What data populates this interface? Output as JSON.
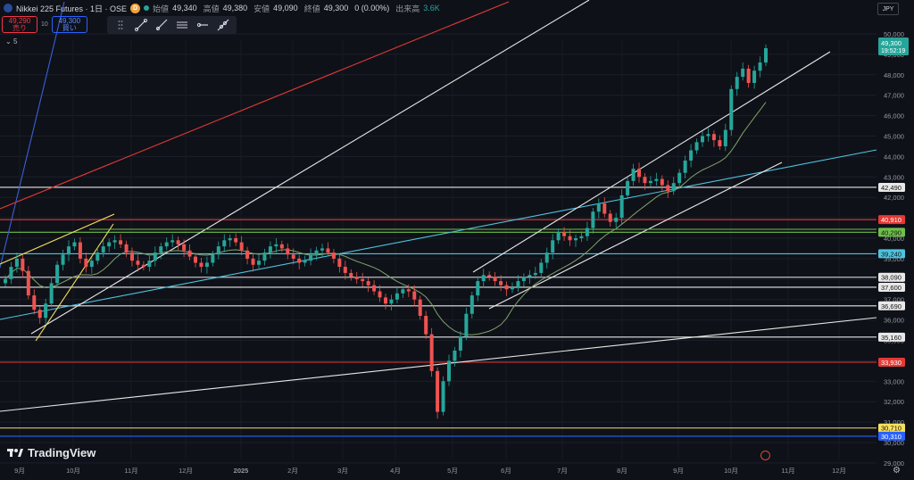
{
  "header": {
    "symbol_title": "Nikkei 225 Futures · 1日 · OSE",
    "badge": "D",
    "ohlc": [
      {
        "label": "始値",
        "value": "49,340"
      },
      {
        "label": "高値",
        "value": "49,380"
      },
      {
        "label": "安値",
        "value": "49,090"
      },
      {
        "label": "終値",
        "value": "49,300"
      }
    ],
    "change": "0 (0.00%)",
    "volume_label": "出来高",
    "volume": "3.6K",
    "currency": "JPY"
  },
  "trade": {
    "sell_price": "49,290",
    "sell_label": "売り",
    "qty": "10",
    "buy_price": "49,300",
    "buy_label": "買い"
  },
  "indicator_count": "5",
  "brand": "TradingView",
  "icons": {
    "drag": "drag-handle-icon",
    "tools": [
      "trend-line-icon",
      "ray-icon",
      "parallel-channel-icon",
      "horizontal-ray-icon",
      "extended-line-icon"
    ],
    "settings": "gear-icon"
  },
  "colors": {
    "up": "#26a69a",
    "down": "#ef5350",
    "white_line": "#e8e8e8",
    "red_line": "#e53935",
    "blue_line": "#4dc3e0",
    "green_line": "#6fbf4a",
    "yellow_line": "#f6e05e",
    "dark_blue_line": "#2962ff"
  },
  "chart_data": {
    "type": "candlestick",
    "y_ticks": [
      29000,
      30000,
      31000,
      32000,
      33000,
      34000,
      35000,
      36000,
      37000,
      38000,
      39000,
      40000,
      41000,
      42000,
      43000,
      44000,
      45000,
      46000,
      47000,
      48000,
      49000,
      50000
    ],
    "x_labels": [
      "9月",
      "10月",
      "11月",
      "12月",
      "2025",
      "2月",
      "3月",
      "4月",
      "5月",
      "6月",
      "7月",
      "8月",
      "9月",
      "10月",
      "11月",
      "12月"
    ],
    "last_price": {
      "value": "49,300",
      "countdown": "19:52:19"
    },
    "horizontal_levels": [
      {
        "value": 42490,
        "label": "42,490",
        "color": "#e8e8e8"
      },
      {
        "value": 40910,
        "label": "40,910",
        "color": "#e53935"
      },
      {
        "value": 40290,
        "label": "40,290",
        "color": "#6fbf4a"
      },
      {
        "value": 39240,
        "label": "39,240",
        "color": "#4dc3e0"
      },
      {
        "value": 38090,
        "label": "38,090",
        "color": "#e8e8e8"
      },
      {
        "value": 37600,
        "label": "37,600",
        "color": "#e8e8e8"
      },
      {
        "value": 36690,
        "label": "36,690",
        "color": "#e8e8e8"
      },
      {
        "value": 35160,
        "label": "35,160",
        "color": "#e8e8e8"
      },
      {
        "value": 33930,
        "label": "33,930",
        "color": "#e53935"
      },
      {
        "value": 30710,
        "label": "30,710",
        "color": "#f6e05e"
      },
      {
        "value": 30310,
        "label": "30,310",
        "color": "#2962ff"
      }
    ],
    "closes": [
      38000,
      38600,
      39000,
      38400,
      37200,
      36500,
      36100,
      36800,
      37800,
      38700,
      39200,
      39600,
      39800,
      39000,
      38600,
      38900,
      39300,
      39600,
      39800,
      39900,
      39700,
      39300,
      38900,
      38700,
      38600,
      38900,
      39300,
      39600,
      39800,
      39900,
      39700,
      39400,
      39100,
      38800,
      38600,
      38800,
      39200,
      39600,
      39900,
      40000,
      39800,
      39400,
      39000,
      38700,
      38900,
      39300,
      39600,
      39700,
      39500,
      39200,
      39000,
      38800,
      38900,
      39200,
      39400,
      39500,
      39300,
      39000,
      38600,
      38300,
      38100,
      38000,
      37900,
      37700,
      37400,
      37100,
      36800,
      37000,
      37300,
      37500,
      37400,
      37000,
      36200,
      35300,
      33500,
      31500,
      33000,
      34000,
      34500,
      35200,
      36300,
      37200,
      37900,
      38200,
      38100,
      37900,
      37700,
      37500,
      37600,
      37900,
      38100,
      38200,
      38300,
      38800,
      39300,
      39900,
      40300,
      40100,
      39900,
      40000,
      40100,
      40500,
      41300,
      41700,
      41200,
      40800,
      41000,
      42100,
      42800,
      43400,
      43000,
      42700,
      42800,
      42900,
      42600,
      42300,
      42700,
      43200,
      43800,
      44300,
      44700,
      45000,
      45100,
      44800,
      44500,
      45300,
      47300,
      47900,
      48300,
      47600,
      48200,
      48600,
      49300
    ]
  }
}
